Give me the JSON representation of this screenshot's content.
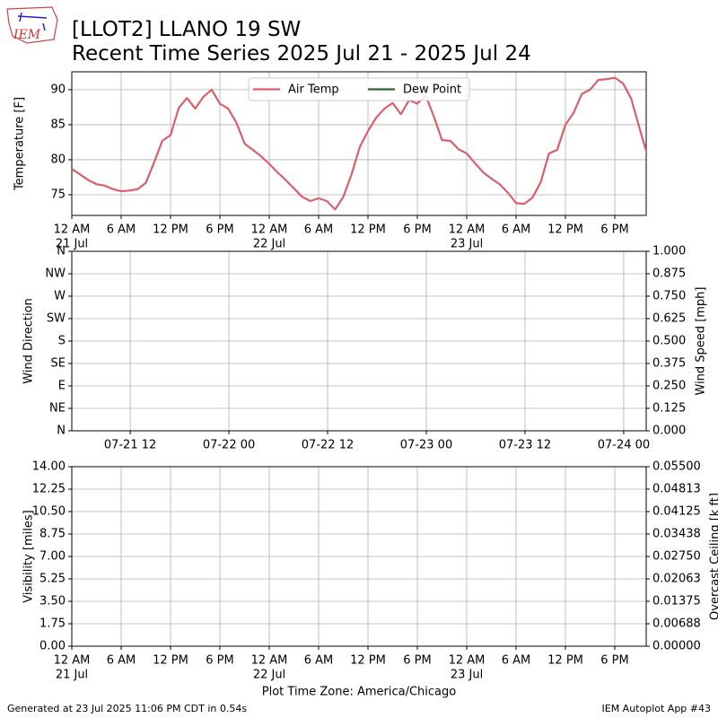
{
  "header": {
    "logo_text": "IEM",
    "title": "[LLOT2] LLANO 19 SW",
    "subtitle": "Recent Time Series 2025 Jul 21 - 2025 Jul 24"
  },
  "footer": {
    "left": "Generated at 23 Jul 2025 11:06 PM CDT in 0.54s",
    "right": "IEM Autoplot App #43"
  },
  "chart_data": [
    {
      "type": "line",
      "ylabel": "Temperature [F]",
      "grid": true,
      "legend": "upper center",
      "xlim": [
        "2025-07-21T00:00",
        "2025-07-23T21:49"
      ],
      "ylim": [
        72.05,
        92.55
      ],
      "yticks": [
        75,
        80,
        85,
        90
      ],
      "xticks": [
        {
          "value": "2025-07-21T00:00",
          "label": "12 AM"
        },
        {
          "value": "2025-07-21T06:00",
          "label": "6 AM"
        },
        {
          "value": "2025-07-21T12:00",
          "label": "12 PM"
        },
        {
          "value": "2025-07-21T18:00",
          "label": "6 PM"
        },
        {
          "value": "2025-07-22T00:00",
          "label": "12 AM"
        },
        {
          "value": "2025-07-22T06:00",
          "label": "6 AM"
        },
        {
          "value": "2025-07-22T12:00",
          "label": "12 PM"
        },
        {
          "value": "2025-07-22T18:00",
          "label": "6 PM"
        },
        {
          "value": "2025-07-23T00:00",
          "label": "12 AM"
        },
        {
          "value": "2025-07-23T06:00",
          "label": "6 AM"
        },
        {
          "value": "2025-07-23T12:00",
          "label": "12 PM"
        },
        {
          "value": "2025-07-23T18:00",
          "label": "6 PM"
        }
      ],
      "xtick_dates": [
        {
          "value": "2025-07-21T00:00",
          "label": "21 Jul"
        },
        {
          "value": "2025-07-22T00:00",
          "label": "22 Jul"
        },
        {
          "value": "2025-07-23T00:00",
          "label": "23 Jul"
        }
      ],
      "x": [
        "2025-07-21T00:00",
        "2025-07-21T01:00",
        "2025-07-21T02:00",
        "2025-07-21T03:00",
        "2025-07-21T04:00",
        "2025-07-21T05:00",
        "2025-07-21T06:00",
        "2025-07-21T07:00",
        "2025-07-21T08:00",
        "2025-07-21T09:00",
        "2025-07-21T10:00",
        "2025-07-21T11:00",
        "2025-07-21T12:00",
        "2025-07-21T13:00",
        "2025-07-21T14:00",
        "2025-07-21T15:00",
        "2025-07-21T16:00",
        "2025-07-21T17:00",
        "2025-07-21T18:00",
        "2025-07-21T19:00",
        "2025-07-21T20:00",
        "2025-07-21T21:00",
        "2025-07-21T22:00",
        "2025-07-21T23:00",
        "2025-07-22T00:00",
        "2025-07-22T01:00",
        "2025-07-22T02:00",
        "2025-07-22T03:00",
        "2025-07-22T04:00",
        "2025-07-22T05:00",
        "2025-07-22T06:00",
        "2025-07-22T07:00",
        "2025-07-22T08:00",
        "2025-07-22T09:00",
        "2025-07-22T10:00",
        "2025-07-22T11:00",
        "2025-07-22T12:00",
        "2025-07-22T13:00",
        "2025-07-22T14:00",
        "2025-07-22T15:00",
        "2025-07-22T16:00",
        "2025-07-22T17:00",
        "2025-07-22T18:00",
        "2025-07-22T19:00",
        "2025-07-22T20:00",
        "2025-07-22T21:00",
        "2025-07-22T22:00",
        "2025-07-22T23:00",
        "2025-07-23T00:00",
        "2025-07-23T01:00",
        "2025-07-23T02:00",
        "2025-07-23T03:00",
        "2025-07-23T04:00",
        "2025-07-23T05:00",
        "2025-07-23T06:00",
        "2025-07-23T07:00",
        "2025-07-23T08:00",
        "2025-07-23T09:00",
        "2025-07-23T10:00",
        "2025-07-23T11:00",
        "2025-07-23T12:00",
        "2025-07-23T13:00",
        "2025-07-23T14:00",
        "2025-07-23T15:00",
        "2025-07-23T16:00",
        "2025-07-23T17:00",
        "2025-07-23T18:00",
        "2025-07-23T19:00",
        "2025-07-23T20:00",
        "2025-07-23T21:00",
        "2025-07-23T22:00"
      ],
      "series": [
        {
          "name": "Air Temp",
          "color": "#d9606a",
          "values": [
            78.7,
            77.9,
            77.1,
            76.5,
            76.3,
            75.8,
            75.5,
            75.6,
            75.8,
            76.7,
            79.6,
            82.7,
            83.5,
            87.4,
            88.8,
            87.3,
            89.0,
            90.0,
            88.0,
            87.3,
            85.3,
            82.3,
            81.4,
            80.5,
            79.4,
            78.2,
            77.1,
            75.9,
            74.7,
            74.1,
            74.5,
            74.1,
            72.9,
            74.7,
            77.9,
            81.8,
            84.1,
            86.0,
            87.3,
            88.1,
            86.5,
            88.5,
            88.0,
            89.2,
            86.2,
            82.8,
            82.7,
            81.5,
            80.9,
            79.5,
            78.2,
            77.3,
            76.5,
            75.3,
            73.8,
            73.7,
            74.6,
            76.8,
            80.9,
            81.4,
            85.0,
            86.7,
            89.4,
            90.0,
            91.4,
            91.5,
            91.7,
            90.9,
            88.7,
            84.5,
            80.5
          ]
        },
        {
          "name": "Dew Point",
          "color": "#2e5e2e",
          "values": [
            null,
            null,
            null,
            null,
            null,
            null,
            null,
            null,
            null,
            null,
            null,
            null,
            null,
            null,
            null,
            null,
            null,
            null,
            null,
            null,
            null,
            null,
            null,
            null,
            null,
            null,
            null,
            null,
            null,
            null,
            null,
            null,
            null,
            null,
            null,
            null,
            null,
            null,
            null,
            null,
            null,
            null,
            null,
            null,
            null,
            null,
            null,
            null,
            null,
            null,
            null,
            null,
            null,
            null,
            null,
            null,
            null,
            null,
            null,
            null,
            null,
            null,
            null,
            null,
            null,
            null,
            null,
            null,
            null,
            null,
            null
          ]
        }
      ]
    },
    {
      "type": "line",
      "ylabel": "Wind Direction",
      "y2label": "Wind Speed [mph]",
      "grid": true,
      "xlim": [
        "2025-07-21T04:54",
        "2025-07-24T02:44"
      ],
      "ylim": [
        0,
        360
      ],
      "yticks": [
        {
          "value": 0,
          "label": "N"
        },
        {
          "value": 45,
          "label": "NE"
        },
        {
          "value": 90,
          "label": "E"
        },
        {
          "value": 135,
          "label": "SE"
        },
        {
          "value": 180,
          "label": "S"
        },
        {
          "value": 225,
          "label": "SW"
        },
        {
          "value": 270,
          "label": "W"
        },
        {
          "value": 315,
          "label": "NW"
        },
        {
          "value": 360,
          "label": "N"
        }
      ],
      "y2lim": [
        0,
        1
      ],
      "y2ticks": [
        {
          "value": 0,
          "label": "0.000"
        },
        0.125,
        {
          "value": 0.25,
          "label": "0.250"
        },
        0.375,
        {
          "value": 0.5,
          "label": "0.500"
        },
        0.625,
        {
          "value": 0.75,
          "label": "0.750"
        },
        0.875,
        {
          "value": 1,
          "label": "1.000"
        }
      ],
      "xticks": [
        {
          "value": "2025-07-21T12:00",
          "label": "07-21 12"
        },
        {
          "value": "2025-07-22T00:00",
          "label": "07-22 00"
        },
        {
          "value": "2025-07-22T12:00",
          "label": "07-22 12"
        },
        {
          "value": "2025-07-23T00:00",
          "label": "07-23 00"
        },
        {
          "value": "2025-07-23T12:00",
          "label": "07-23 12"
        },
        {
          "value": "2025-07-24T00:00",
          "label": "07-24 00"
        }
      ],
      "series": []
    },
    {
      "type": "line",
      "ylabel": "Visibility [miles]",
      "y2label": "Overcast Ceiling [k ft]",
      "y2label_color": "#008000",
      "xlabel": "Plot Time Zone: America/Chicago",
      "grid": true,
      "xlim": [
        "2025-07-21T00:00",
        "2025-07-23T21:49"
      ],
      "ylim": [
        0,
        14
      ],
      "yticks": [
        {
          "value": 0,
          "label": "0.00"
        },
        1.75,
        {
          "value": 3.5,
          "label": "3.50"
        },
        5.25,
        {
          "value": 7,
          "label": "7.00"
        },
        8.75,
        {
          "value": 10.5,
          "label": "10.50"
        },
        12.25,
        {
          "value": 14,
          "label": "14.00"
        }
      ],
      "y2lim": [
        0,
        0.055
      ],
      "y2ticks": [
        {
          "value": 0,
          "label": "0.00000"
        },
        {
          "value": 0.006875,
          "label": "0.00688"
        },
        0.01375,
        {
          "value": 0.020625,
          "label": "0.02063"
        },
        {
          "value": 0.0275,
          "label": "0.02750"
        },
        {
          "value": 0.034375,
          "label": "0.03438"
        },
        0.04125,
        {
          "value": 0.048125,
          "label": "0.04813"
        },
        {
          "value": 0.055,
          "label": "0.05500"
        }
      ],
      "xticks": [
        {
          "value": "2025-07-21T00:00",
          "label": "12 AM"
        },
        {
          "value": "2025-07-21T06:00",
          "label": "6 AM"
        },
        {
          "value": "2025-07-21T12:00",
          "label": "12 PM"
        },
        {
          "value": "2025-07-21T18:00",
          "label": "6 PM"
        },
        {
          "value": "2025-07-22T00:00",
          "label": "12 AM"
        },
        {
          "value": "2025-07-22T06:00",
          "label": "6 AM"
        },
        {
          "value": "2025-07-22T12:00",
          "label": "12 PM"
        },
        {
          "value": "2025-07-22T18:00",
          "label": "6 PM"
        },
        {
          "value": "2025-07-23T00:00",
          "label": "12 AM"
        },
        {
          "value": "2025-07-23T06:00",
          "label": "6 AM"
        },
        {
          "value": "2025-07-23T12:00",
          "label": "12 PM"
        },
        {
          "value": "2025-07-23T18:00",
          "label": "6 PM"
        }
      ],
      "xtick_dates": [
        {
          "value": "2025-07-21T00:00",
          "label": "21 Jul"
        },
        {
          "value": "2025-07-22T00:00",
          "label": "22 Jul"
        },
        {
          "value": "2025-07-23T00:00",
          "label": "23 Jul"
        }
      ],
      "series": []
    }
  ]
}
